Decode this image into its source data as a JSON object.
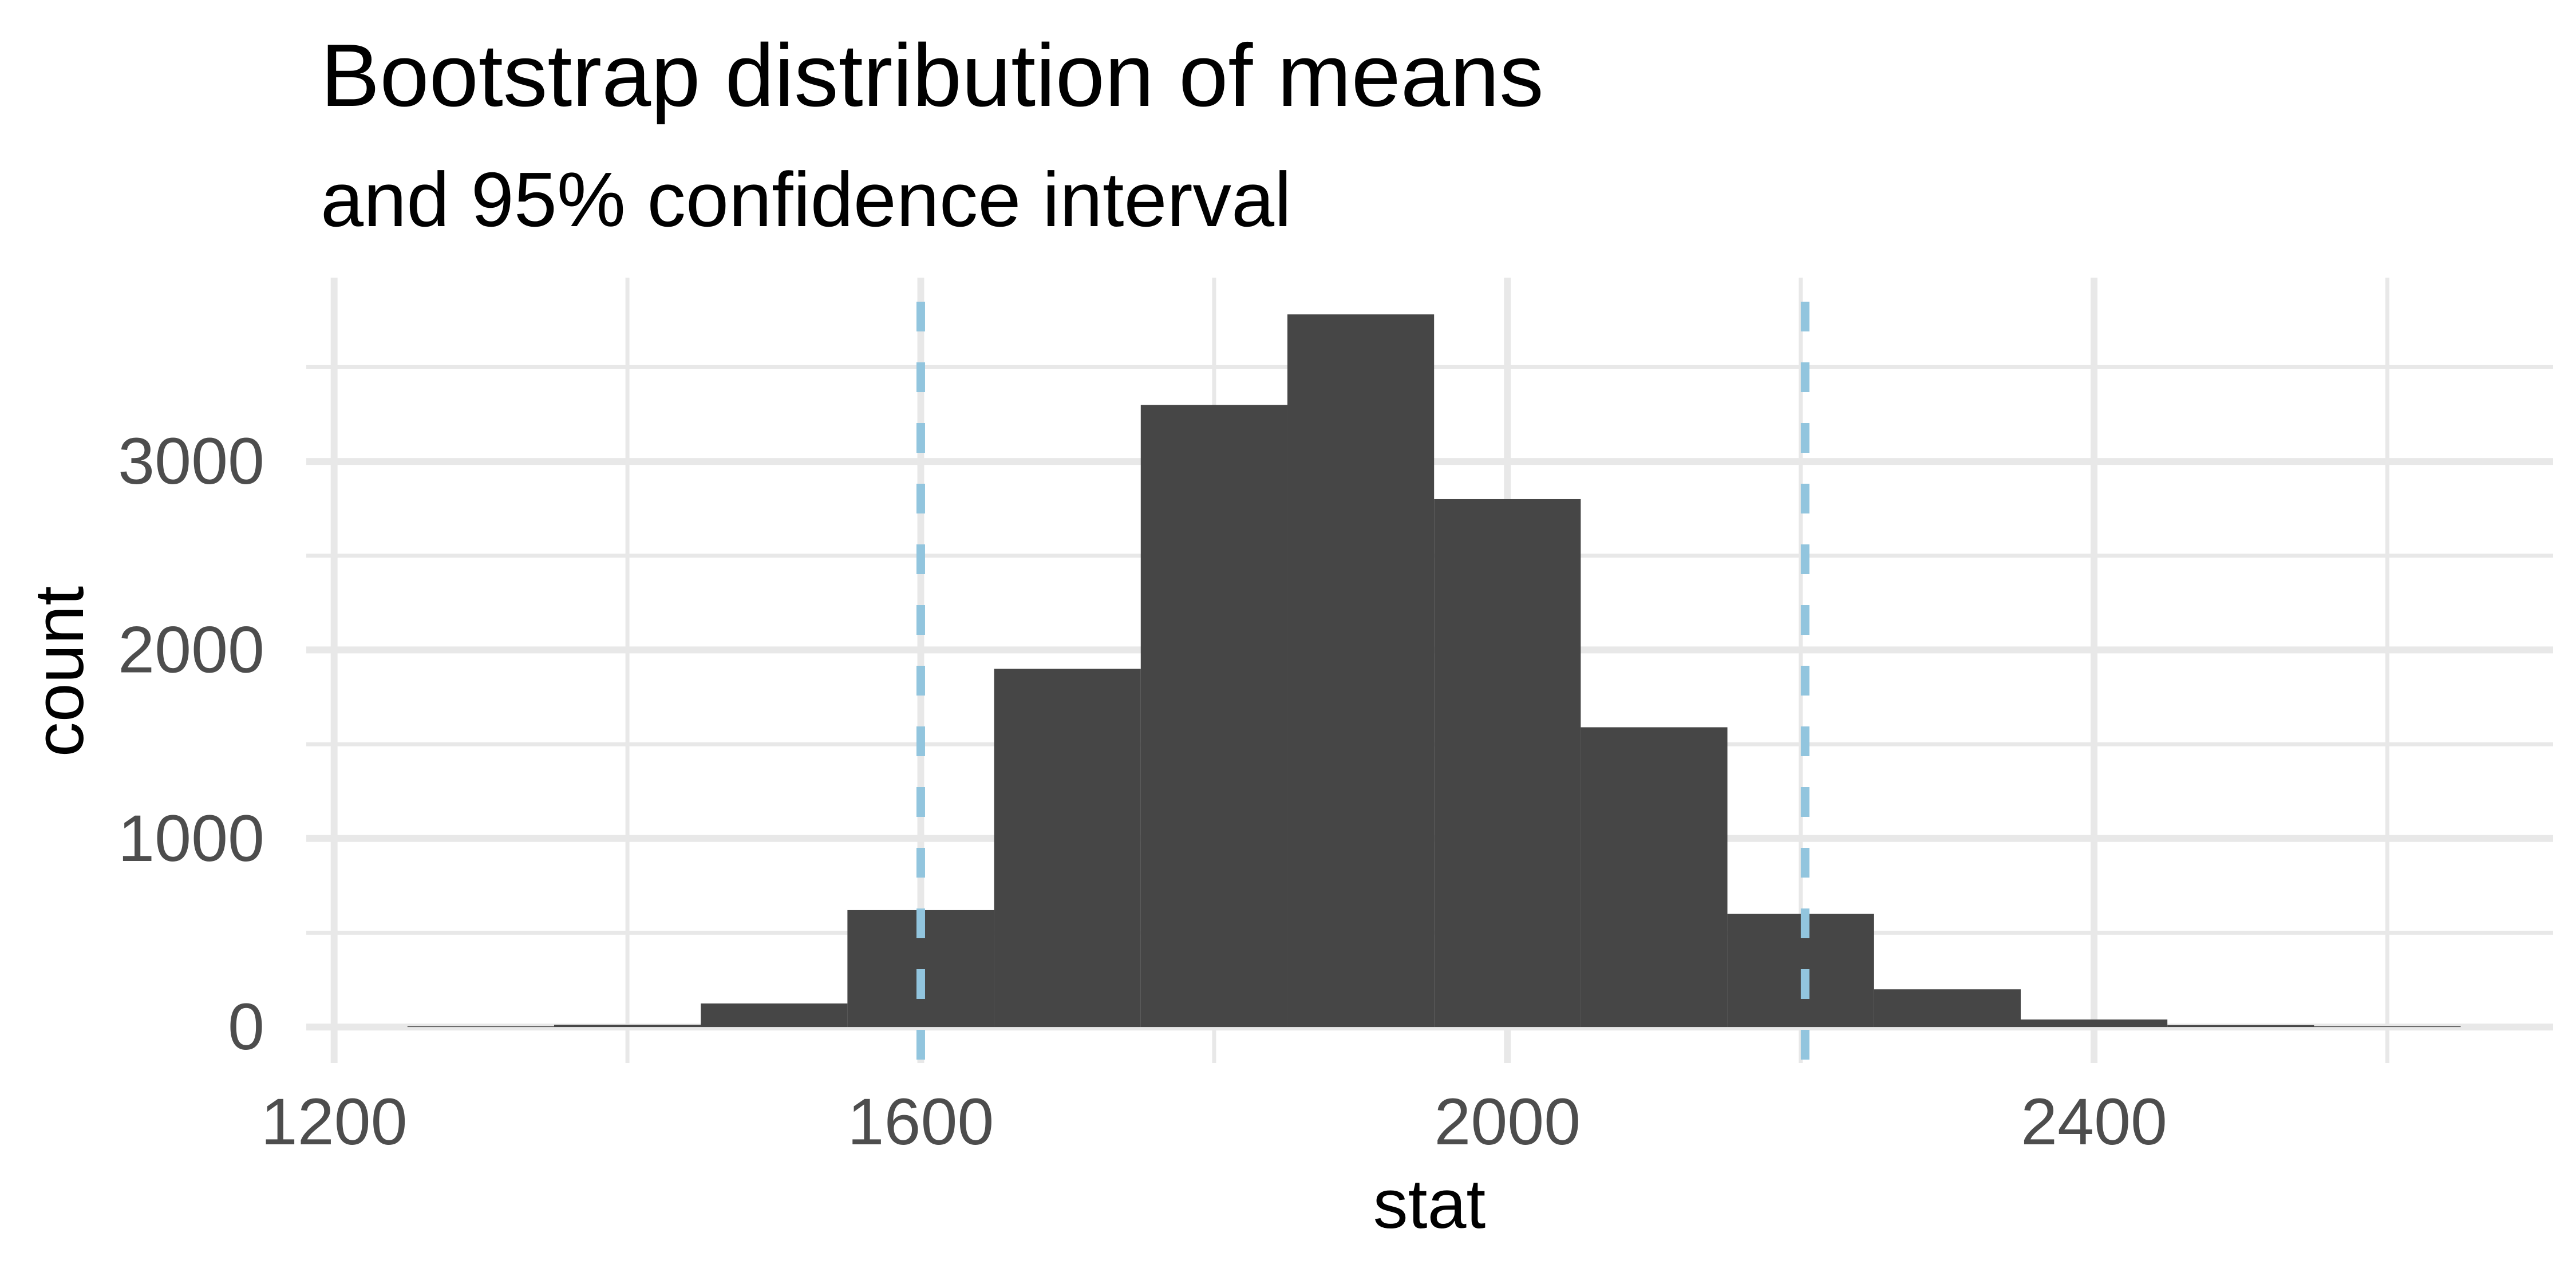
{
  "title": "Bootstrap distribution of means",
  "subtitle": "and 95% confidence interval",
  "chart_data": {
    "type": "bar",
    "title": "Bootstrap distribution of means",
    "subtitle": "and 95% confidence interval",
    "xlabel": "stat",
    "ylabel": "count",
    "bin_width": 100,
    "bins": [
      {
        "x0": 1250,
        "x1": 1350,
        "count": 4
      },
      {
        "x0": 1350,
        "x1": 1450,
        "count": 12
      },
      {
        "x0": 1450,
        "x1": 1550,
        "count": 125
      },
      {
        "x0": 1550,
        "x1": 1650,
        "count": 620
      },
      {
        "x0": 1650,
        "x1": 1750,
        "count": 1900
      },
      {
        "x0": 1750,
        "x1": 1850,
        "count": 3300
      },
      {
        "x0": 1850,
        "x1": 1950,
        "count": 3780
      },
      {
        "x0": 1950,
        "x1": 2050,
        "count": 2800
      },
      {
        "x0": 2050,
        "x1": 2150,
        "count": 1590
      },
      {
        "x0": 2150,
        "x1": 2250,
        "count": 600
      },
      {
        "x0": 2250,
        "x1": 2350,
        "count": 200
      },
      {
        "x0": 2350,
        "x1": 2450,
        "count": 40
      },
      {
        "x0": 2450,
        "x1": 2550,
        "count": 10
      },
      {
        "x0": 2550,
        "x1": 2650,
        "count": 4
      }
    ],
    "confidence_interval": {
      "level": "95%",
      "lower": 1600,
      "upper": 2203
    },
    "x_ticks": [
      {
        "value": 1200,
        "label": "1200"
      },
      {
        "value": 1600,
        "label": "1600"
      },
      {
        "value": 2000,
        "label": "2000"
      },
      {
        "value": 2400,
        "label": "2400"
      }
    ],
    "y_ticks": [
      {
        "value": 0,
        "label": "0"
      },
      {
        "value": 1000,
        "label": "1000"
      },
      {
        "value": 2000,
        "label": "2000"
      },
      {
        "value": 3000,
        "label": "3000"
      }
    ],
    "x_minor_gridlines": [
      1400,
      1800,
      2200,
      2600
    ],
    "y_minor_gridlines": [
      500,
      1500,
      2500,
      3500
    ],
    "xlim": [
      1181,
      2713
    ],
    "ylim": [
      -191,
      3975
    ],
    "grid": "on",
    "legend": "none",
    "colors": {
      "bar_fill": "#464646",
      "ci_line": "#92C5DE",
      "gridline": "#E8E8E8",
      "tick_label": "#4D4D4D",
      "text": "#000000",
      "background": "#FFFFFF"
    }
  }
}
